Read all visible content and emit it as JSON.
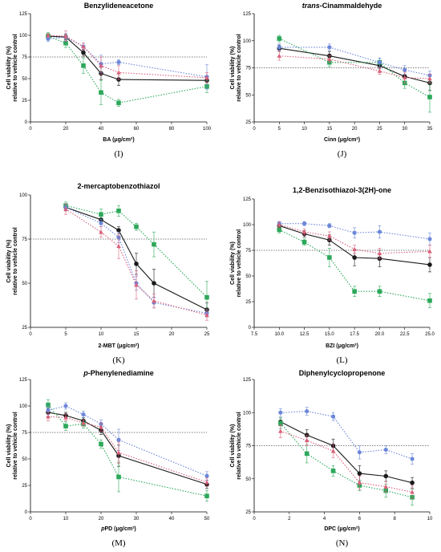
{
  "colors": {
    "control": "#1a1a1a",
    "green": "#2ca85a",
    "blue": "#6b86d8",
    "pink": "#d9607a",
    "reference": "#555555"
  },
  "chart_data": [
    {
      "type": "line",
      "title": "Benzylideneacetone",
      "title_style": "normal",
      "xlabel": "BA (μg/cm²)",
      "ylabel": [
        "Cell viability (%)",
        "relative to vehicle control"
      ],
      "panel_label": "(I)",
      "xlim": [
        0,
        100
      ],
      "xticks": [
        "0",
        "20",
        "40",
        "60",
        "80",
        "100"
      ],
      "ylim": [
        0,
        125
      ],
      "yticks": [
        "0",
        "25",
        "50",
        "75",
        "100",
        "125"
      ],
      "reference_y": 75,
      "x": [
        10,
        20,
        30,
        40,
        50,
        100
      ],
      "series": [
        {
          "key": "control",
          "marker": "circle",
          "values": [
            99,
            98,
            80,
            56,
            49,
            48
          ],
          "err": [
            3,
            3,
            4,
            7,
            7,
            5
          ]
        },
        {
          "key": "green",
          "marker": "square",
          "values": [
            99,
            91,
            65,
            34,
            22,
            41
          ],
          "err": [
            4,
            5,
            9,
            14,
            4,
            7
          ]
        },
        {
          "key": "blue",
          "marker": "hexagon",
          "values": [
            96,
            98,
            87,
            67,
            69,
            52
          ],
          "err": [
            3,
            4,
            4,
            10,
            3,
            14
          ]
        },
        {
          "key": "pink",
          "marker": "triangle",
          "values": [
            100,
            99,
            87,
            65,
            57,
            51
          ],
          "err": [
            2,
            6,
            4,
            10,
            8,
            6
          ]
        }
      ]
    },
    {
      "type": "line",
      "title": "trans-Cinammaldehyde",
      "title_style": "italic-prefix",
      "xlabel": "Cinn (μg/cm²)",
      "ylabel": [
        "Cell viability (%)",
        "relative to vehicle control"
      ],
      "panel_label": "(J)",
      "xlim": [
        0,
        35
      ],
      "xticks": [
        "0",
        "5",
        "10",
        "15",
        "20",
        "25",
        "30",
        "35"
      ],
      "ylim": [
        25,
        125
      ],
      "yticks": [
        "25",
        "50",
        "75",
        "100",
        "125"
      ],
      "reference_y": 75,
      "x": [
        5,
        15,
        25,
        30,
        35
      ],
      "series": [
        {
          "key": "control",
          "marker": "circle",
          "values": [
            93,
            86,
            77,
            67,
            61
          ],
          "err": [
            3,
            4,
            3,
            5,
            7
          ]
        },
        {
          "key": "green",
          "marker": "square",
          "values": [
            102,
            80,
            80,
            61,
            48
          ],
          "err": [
            3,
            4,
            4,
            5,
            14
          ]
        },
        {
          "key": "blue",
          "marker": "hexagon",
          "values": [
            94,
            94,
            80,
            73,
            68
          ],
          "err": [
            3,
            3,
            4,
            4,
            4
          ]
        },
        {
          "key": "pink",
          "marker": "triangle",
          "values": [
            86,
            83,
            72,
            66,
            65
          ],
          "err": [
            4,
            3,
            3,
            5,
            4
          ]
        }
      ]
    },
    {
      "type": "line",
      "title": "2-mercaptobenzothiazol",
      "title_style": "normal",
      "xlabel": "2-MBT (μg/cm²)",
      "ylabel": [
        "Cell viability (%)",
        "relative to vehicle control"
      ],
      "panel_label": "(K)",
      "xlim": [
        0,
        25
      ],
      "xticks": [
        "0",
        "5",
        "10",
        "15",
        "20",
        "25"
      ],
      "ylim": [
        25,
        100
      ],
      "yticks": [
        "25",
        "50",
        "75",
        "100"
      ],
      "reference_y": 75,
      "x": [
        5,
        10,
        12.5,
        15,
        17.5,
        25
      ],
      "series": [
        {
          "key": "control",
          "marker": "circle",
          "values": [
            93,
            86,
            80,
            61,
            50,
            35
          ],
          "err": [
            2,
            2,
            2,
            6,
            8,
            4
          ]
        },
        {
          "key": "green",
          "marker": "square",
          "values": [
            94,
            89,
            91,
            82,
            72,
            42
          ],
          "err": [
            2,
            3,
            3,
            2,
            7,
            9
          ]
        },
        {
          "key": "blue",
          "marker": "hexagon",
          "values": [
            93,
            84,
            76,
            50,
            39,
            33
          ],
          "err": [
            2,
            2,
            3,
            4,
            3,
            2
          ]
        },
        {
          "key": "pink",
          "marker": "triangle",
          "values": [
            92,
            79,
            71,
            49,
            40,
            32
          ],
          "err": [
            3,
            3,
            7,
            8,
            4,
            3
          ]
        }
      ]
    },
    {
      "type": "line",
      "title": "1,2-Benzisothiazol-3(2H)-one",
      "title_style": "normal",
      "xlabel": "BZI (μg/cm²)",
      "ylabel": [
        "Cell viability (%)",
        "relative to vehicle control"
      ],
      "panel_label": "(L)",
      "xlim": [
        7.5,
        25
      ],
      "xticks": [
        "7.5",
        "10.0",
        "12.5",
        "15.0",
        "17.5",
        "20.0",
        "22.5",
        "25.0"
      ],
      "ylim": [
        0,
        125
      ],
      "yticks": [
        "0",
        "25",
        "50",
        "75",
        "100",
        "125"
      ],
      "reference_y": 75,
      "x": [
        10,
        12.5,
        15,
        17.5,
        20,
        25
      ],
      "series": [
        {
          "key": "control",
          "marker": "circle",
          "values": [
            99,
            91,
            85,
            68,
            67,
            61
          ],
          "err": [
            3,
            3,
            5,
            8,
            8,
            7
          ]
        },
        {
          "key": "green",
          "marker": "square",
          "values": [
            95,
            83,
            68,
            35,
            35,
            26
          ],
          "err": [
            3,
            3,
            9,
            5,
            5,
            7
          ]
        },
        {
          "key": "blue",
          "marker": "hexagon",
          "values": [
            101,
            101,
            99,
            92,
            93,
            86
          ],
          "err": [
            2,
            2,
            2,
            5,
            6,
            6
          ]
        },
        {
          "key": "pink",
          "marker": "triangle",
          "values": [
            100,
            93,
            89,
            76,
            72,
            74
          ],
          "err": [
            3,
            3,
            4,
            4,
            5,
            6
          ]
        }
      ]
    },
    {
      "type": "line",
      "title": "p-Phenylenediamine",
      "title_style": "italic-prefix",
      "xlabel": "pPD (μg/cm²)",
      "xlabel_style": "italic-prefix",
      "ylabel": [
        "Cell viability (%)",
        "relative to vehicle control"
      ],
      "panel_label": "(M)",
      "xlim": [
        0,
        50
      ],
      "xticks": [
        "0",
        "10",
        "20",
        "30",
        "40",
        "50"
      ],
      "ylim": [
        0,
        125
      ],
      "yticks": [
        "0",
        "25",
        "50",
        "75",
        "100",
        "125"
      ],
      "reference_y": 75,
      "x": [
        5,
        10,
        15,
        20,
        25,
        50
      ],
      "series": [
        {
          "key": "control",
          "marker": "circle",
          "values": [
            94,
            91,
            86,
            77,
            53,
            26
          ],
          "err": [
            4,
            3,
            3,
            4,
            10,
            4
          ]
        },
        {
          "key": "green",
          "marker": "square",
          "values": [
            101,
            81,
            83,
            64,
            33,
            15
          ],
          "err": [
            5,
            4,
            4,
            4,
            14,
            5
          ]
        },
        {
          "key": "blue",
          "marker": "hexagon",
          "values": [
            96,
            100,
            92,
            83,
            68,
            34
          ],
          "err": [
            4,
            3,
            3,
            4,
            10,
            4
          ]
        },
        {
          "key": "pink",
          "marker": "triangle",
          "values": [
            90,
            89,
            84,
            80,
            56,
            28
          ],
          "err": [
            4,
            3,
            3,
            4,
            10,
            4
          ]
        }
      ]
    },
    {
      "type": "line",
      "title": "Diphenylcyclopropenone",
      "title_style": "normal",
      "xlabel": "DPC (μg/cm²)",
      "ylabel": [
        "Cell viability (%)",
        "relative to vehicle control"
      ],
      "panel_label": "(N)",
      "xlim": [
        0,
        10
      ],
      "xticks": [
        "0",
        "2",
        "4",
        "6",
        "8",
        "10"
      ],
      "ylim": [
        25,
        125
      ],
      "yticks": [
        "25",
        "50",
        "75",
        "100",
        "125"
      ],
      "reference_y": 75,
      "x": [
        1.5,
        3,
        4.5,
        6,
        7.5,
        9
      ],
      "series": [
        {
          "key": "control",
          "marker": "circle",
          "values": [
            93,
            83,
            75,
            54,
            52,
            47
          ],
          "err": [
            3,
            4,
            5,
            6,
            4,
            4
          ]
        },
        {
          "key": "green",
          "marker": "square",
          "values": [
            92,
            69,
            56,
            45,
            41,
            36
          ],
          "err": [
            4,
            7,
            4,
            4,
            5,
            6
          ]
        },
        {
          "key": "blue",
          "marker": "hexagon",
          "values": [
            100,
            101,
            97,
            70,
            72,
            65
          ],
          "err": [
            3,
            3,
            3,
            5,
            3,
            4
          ]
        },
        {
          "key": "pink",
          "marker": "triangle",
          "values": [
            86,
            79,
            71,
            47,
            44,
            40
          ],
          "err": [
            5,
            4,
            5,
            5,
            4,
            5
          ]
        }
      ]
    }
  ]
}
